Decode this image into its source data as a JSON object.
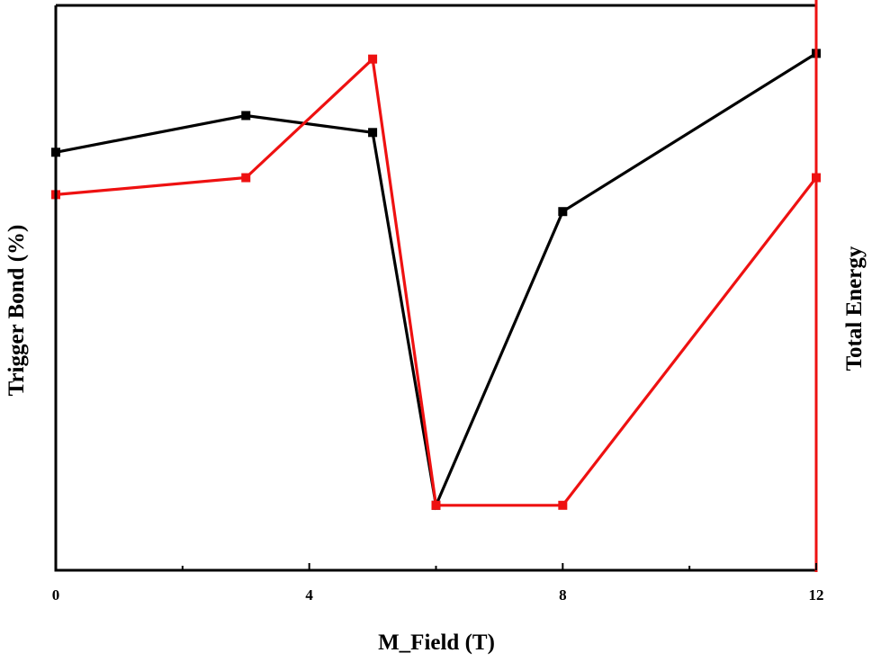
{
  "chart_data": {
    "type": "line",
    "xlabel": "M_Field (T)",
    "ylabel": "Trigger Bond (%)",
    "y2label": "Total Energy",
    "xlim": [
      0,
      12
    ],
    "x_ticks": [
      0,
      4,
      8,
      12
    ],
    "x_tick_labels": [
      "0",
      "4",
      "8",
      "12"
    ],
    "x_minor_ticks": [
      2,
      6,
      10
    ],
    "ylim": [
      0,
      100
    ],
    "y2lim": [
      0,
      100
    ],
    "grid": false,
    "series": [
      {
        "color": "#000000",
        "axis": "left",
        "x": [
          0,
          3,
          5,
          6,
          8,
          12
        ],
        "y": [
          74,
          80.5,
          77.5,
          11.5,
          63.5,
          91.5
        ]
      },
      {
        "color": "#ee1111",
        "axis": "right",
        "x": [
          0,
          3,
          5,
          6,
          8,
          12
        ],
        "y": [
          66.5,
          69.5,
          90.5,
          11.5,
          11.5,
          69.5
        ]
      }
    ]
  }
}
